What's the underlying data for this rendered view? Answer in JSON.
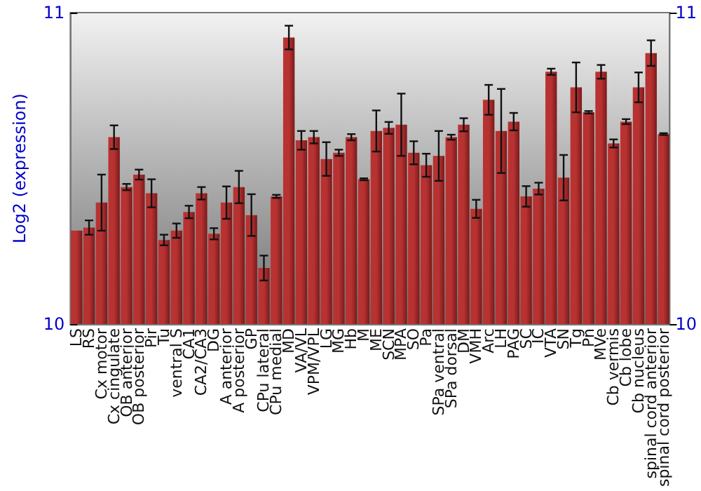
{
  "chart_data": {
    "type": "bar",
    "ylabel": "Log2 (expression)",
    "categories": [
      "LS",
      "RS",
      "Cx motor",
      "Cx cingulate",
      "OB anterior",
      "OB posterior",
      "Pir",
      "Tu",
      "ventral S",
      "CA1",
      "CA2/CA3",
      "DG",
      "A anterior",
      "A posterior",
      "GP",
      "CPu lateral",
      "CPu medial",
      "MD",
      "VA/VL",
      "VPM/VPL",
      "LG",
      "MG",
      "Hb",
      "M",
      "ME",
      "SCN",
      "MPA",
      "SO",
      "Pa",
      "SPa ventral",
      "SPa dorsal",
      "DM",
      "VMH",
      "Arc",
      "LH",
      "PAG",
      "SC",
      "IC",
      "VTA",
      "SN",
      "Tg",
      "Pn",
      "MVe",
      "Cb vermis",
      "Cb lobe",
      "Cb nucleus",
      "spinal cord anterior",
      "spinal cord posterior"
    ],
    "values": [
      10.3,
      10.31,
      10.39,
      10.6,
      10.44,
      10.48,
      10.42,
      10.27,
      10.3,
      10.36,
      10.42,
      10.29,
      10.39,
      10.44,
      10.35,
      10.18,
      10.41,
      10.92,
      10.59,
      10.6,
      10.53,
      10.55,
      10.6,
      10.465,
      10.62,
      10.63,
      10.64,
      10.55,
      10.51,
      10.54,
      10.6,
      10.64,
      10.37,
      10.72,
      10.62,
      10.65,
      10.41,
      10.435,
      10.81,
      10.47,
      10.76,
      10.68,
      10.81,
      10.58,
      10.65,
      10.76,
      10.87,
      10.61
    ],
    "errors": [
      null,
      0.023,
      0.09,
      0.038,
      0.01,
      0.016,
      0.045,
      0.017,
      0.023,
      0.02,
      0.02,
      0.018,
      0.052,
      0.052,
      0.067,
      0.04,
      0.005,
      0.038,
      0.03,
      0.02,
      0.054,
      0.01,
      0.01,
      0.003,
      0.066,
      0.019,
      0.1,
      0.037,
      0.037,
      0.08,
      0.008,
      0.021,
      0.029,
      0.048,
      0.135,
      0.028,
      0.033,
      0.019,
      0.01,
      0.073,
      0.08,
      0.004,
      0.022,
      0.013,
      0.008,
      0.048,
      0.041,
      0.003
    ],
    "color": "#b83232",
    "ylim": [
      10,
      11
    ],
    "yticks": [
      10,
      11
    ],
    "y2lim": [
      10,
      11
    ],
    "y2ticks": [
      10,
      11
    ],
    "grid": false
  }
}
